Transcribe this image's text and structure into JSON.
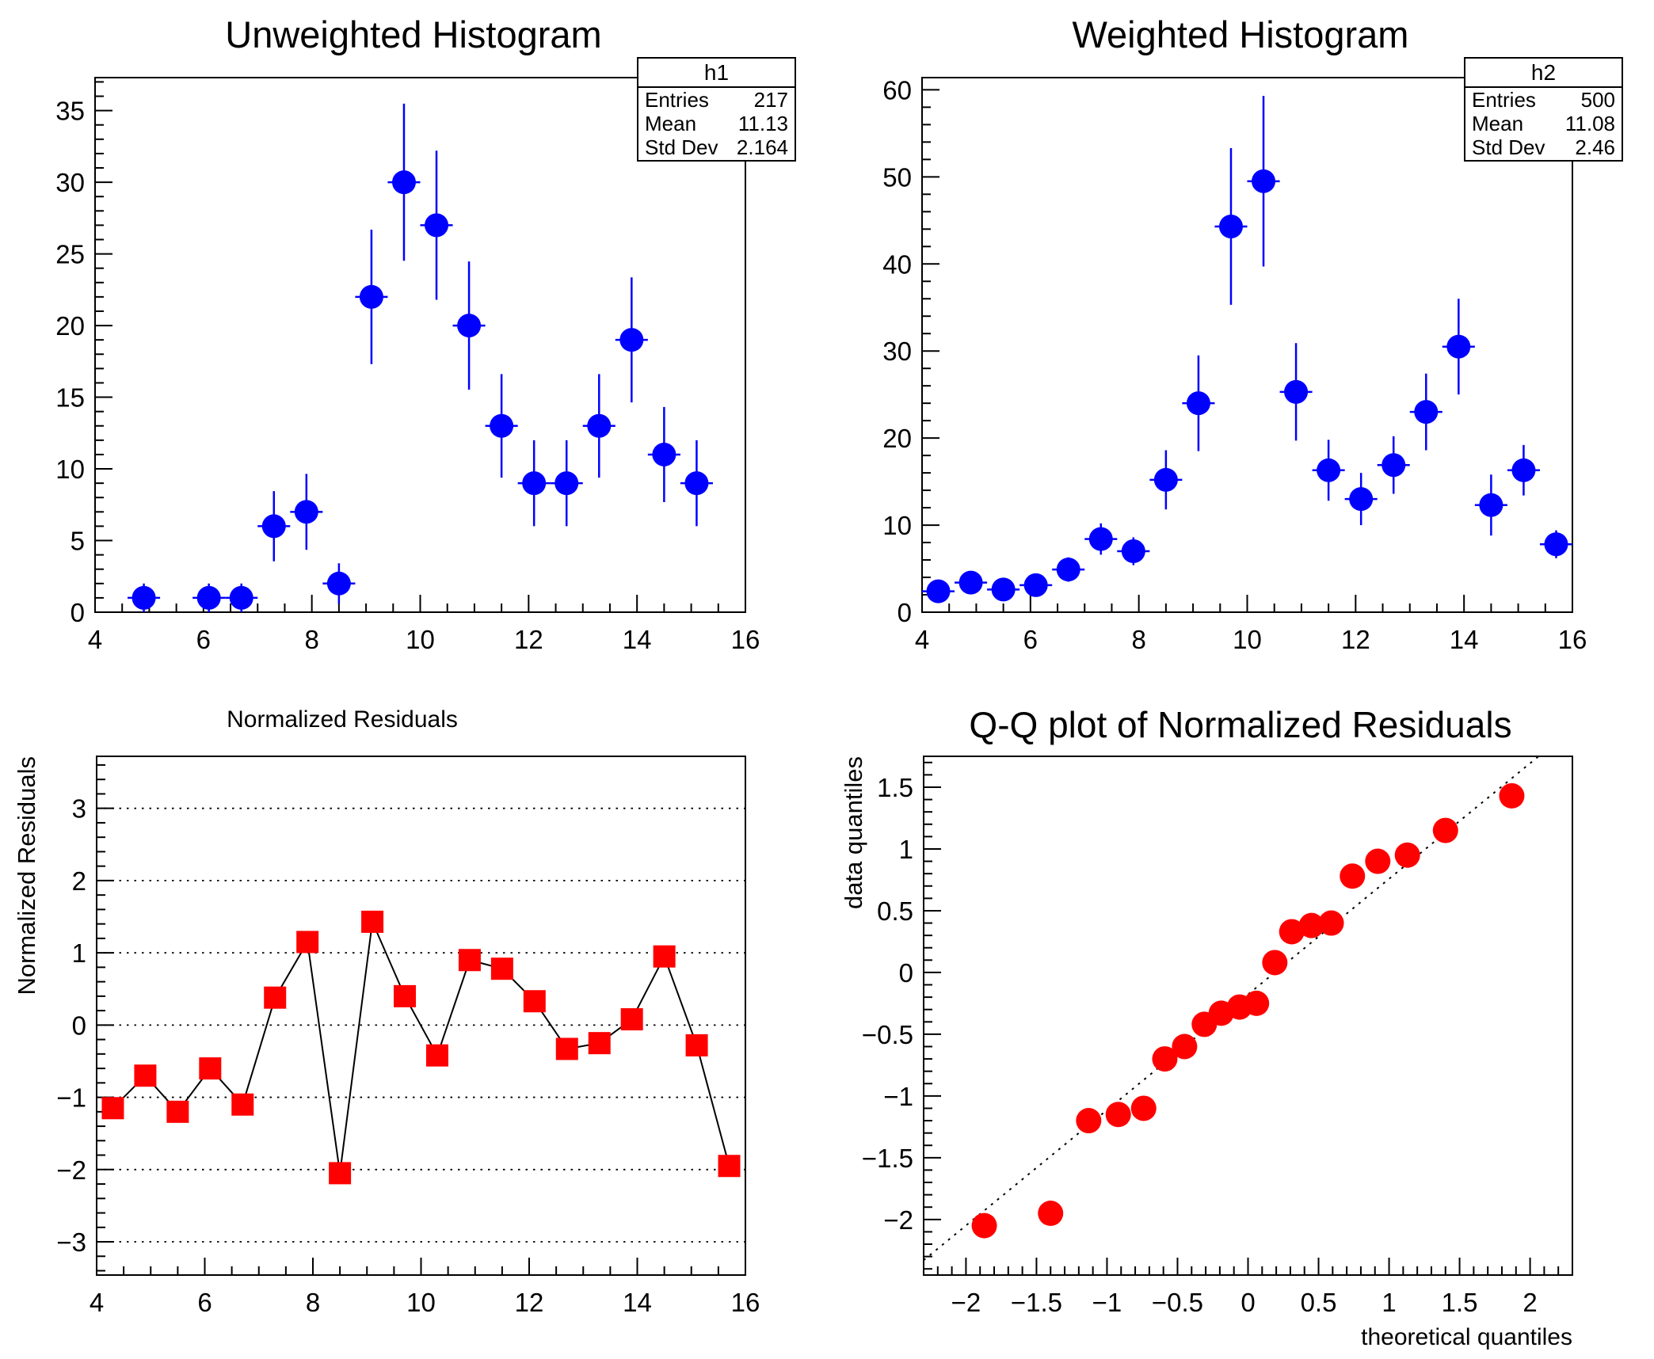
{
  "canvas": {
    "background": "#ffffff",
    "frame_color": "#000000"
  },
  "chart_data": [
    {
      "id": "unweighted-histogram",
      "type": "scatter",
      "title": "Unweighted Histogram",
      "marker": {
        "shape": "circle",
        "color": "#0000ff",
        "radius": 15
      },
      "error_bar_color": "#0000ff",
      "x_axis": {
        "min": 4,
        "max": 16,
        "major": [
          4,
          6,
          8,
          10,
          12,
          14,
          16
        ],
        "labels": [
          "4",
          "6",
          "8",
          "10",
          "12",
          "14",
          "16"
        ],
        "minor_step": 0.5
      },
      "y_axis": {
        "min": 0,
        "max": 37.3,
        "major": [
          0,
          5,
          10,
          15,
          20,
          25,
          30,
          35
        ],
        "labels": [
          "0",
          "5",
          "10",
          "15",
          "20",
          "25",
          "30",
          "35"
        ],
        "minor_step": 1
      },
      "x": [
        4.9,
        6.1,
        6.7,
        7.3,
        7.9,
        8.5,
        9.1,
        9.7,
        10.3,
        10.9,
        11.5,
        12.1,
        12.7,
        13.3,
        13.9,
        14.5,
        15.1
      ],
      "y": [
        1,
        1,
        1,
        6,
        7,
        2,
        22,
        30,
        27,
        20,
        13,
        9,
        9,
        13,
        19,
        11,
        9
      ],
      "xerr": 0.3,
      "yerr": [
        1,
        1,
        1,
        2.45,
        2.65,
        1.41,
        4.69,
        5.48,
        5.2,
        4.47,
        3.61,
        3,
        3,
        3.61,
        4.36,
        3.32,
        3
      ],
      "stats": {
        "name": "h1",
        "rows": [
          {
            "label": "Entries",
            "value": "217"
          },
          {
            "label": "Mean",
            "value": "11.13"
          },
          {
            "label": "Std Dev",
            "value": "2.164"
          }
        ]
      }
    },
    {
      "id": "weighted-histogram",
      "type": "scatter",
      "title": "Weighted Histogram",
      "marker": {
        "shape": "circle",
        "color": "#0000ff",
        "radius": 15
      },
      "error_bar_color": "#0000ff",
      "x_axis": {
        "min": 4,
        "max": 16,
        "major": [
          4,
          6,
          8,
          10,
          12,
          14,
          16
        ],
        "labels": [
          "4",
          "6",
          "8",
          "10",
          "12",
          "14",
          "16"
        ],
        "minor_step": 0.5
      },
      "y_axis": {
        "min": 0,
        "max": 61.4,
        "major": [
          0,
          10,
          20,
          30,
          40,
          50,
          60
        ],
        "labels": [
          "0",
          "10",
          "20",
          "30",
          "40",
          "50",
          "60"
        ],
        "minor_step": 2
      },
      "x": [
        4.3,
        4.9,
        5.5,
        6.1,
        6.7,
        7.3,
        7.9,
        8.5,
        9.1,
        9.7,
        10.3,
        10.9,
        11.5,
        12.1,
        12.7,
        13.3,
        13.9,
        14.5,
        15.1,
        15.7
      ],
      "y": [
        2.4,
        3.4,
        2.6,
        3.1,
        4.9,
        8.4,
        7.0,
        15.2,
        24.0,
        44.3,
        49.5,
        25.3,
        16.3,
        13.0,
        16.9,
        23.0,
        30.5,
        12.3,
        16.3,
        7.8
      ],
      "xerr": 0.3,
      "yerr": [
        1.0,
        1.2,
        1.0,
        1.1,
        1.4,
        1.8,
        1.6,
        3.4,
        5.5,
        9.0,
        9.8,
        5.6,
        3.5,
        3.0,
        3.3,
        4.4,
        5.5,
        3.5,
        2.9,
        1.6
      ],
      "stats": {
        "name": "h2",
        "rows": [
          {
            "label": "Entries",
            "value": "500"
          },
          {
            "label": "Mean",
            "value": "11.08"
          },
          {
            "label": "Std Dev",
            "value": "2.46"
          }
        ]
      }
    },
    {
      "id": "normalized-residuals",
      "type": "line",
      "title": "Normalized Residuals",
      "marker": {
        "shape": "square",
        "color": "#ff0000",
        "size": 28
      },
      "connect_line": {
        "color": "#000000",
        "width": 2
      },
      "x_axis": {
        "min": 4,
        "max": 16,
        "major": [
          4,
          6,
          8,
          10,
          12,
          14,
          16
        ],
        "labels": [
          "4",
          "6",
          "8",
          "10",
          "12",
          "14",
          "16"
        ],
        "minor_step": 0.5
      },
      "y_axis": {
        "min": -3.46,
        "max": 3.72,
        "major": [
          -3,
          -2,
          -1,
          0,
          1,
          2,
          3
        ],
        "labels": [
          "−3",
          "−2",
          "−1",
          "0",
          "1",
          "2",
          "3"
        ],
        "minor_step": 0.2,
        "gridlines": [
          -3,
          -2,
          -1,
          0,
          1,
          2,
          3
        ],
        "title": "Normalized Residuals"
      },
      "x": [
        4.3,
        4.9,
        5.5,
        6.1,
        6.7,
        7.3,
        7.9,
        8.5,
        9.1,
        9.7,
        10.3,
        10.9,
        11.5,
        12.1,
        12.7,
        13.3,
        13.9,
        14.5,
        15.1,
        15.7
      ],
      "y": [
        -1.15,
        -0.7,
        -1.2,
        -0.6,
        -1.1,
        0.38,
        1.15,
        -2.05,
        1.43,
        0.4,
        -0.42,
        0.9,
        0.78,
        0.33,
        -0.33,
        -0.25,
        0.08,
        0.95,
        -0.28,
        -1.95
      ]
    },
    {
      "id": "qq-plot",
      "type": "scatter",
      "title": "Q-Q plot of Normalized Residuals",
      "marker": {
        "shape": "circle",
        "color": "#ff0000",
        "radius": 16
      },
      "ref_line": {
        "x1": -2.3,
        "y1": -2.33,
        "x2": 2.06,
        "y2": 1.75,
        "color": "#000000"
      },
      "x_axis": {
        "min": -2.3,
        "max": 2.3,
        "major": [
          -2,
          -1.5,
          -1,
          -0.5,
          0,
          0.5,
          1,
          1.5,
          2
        ],
        "labels": [
          "−2",
          "−1.5",
          "−1",
          "−0.5",
          "0",
          "0.5",
          "1",
          "1.5",
          "2"
        ],
        "minor_step": 0.1,
        "title": "theoretical quantiles"
      },
      "y_axis": {
        "min": -2.45,
        "max": 1.75,
        "major": [
          -2,
          -1.5,
          -1,
          -0.5,
          0,
          0.5,
          1,
          1.5
        ],
        "labels": [
          "−2",
          "−1.5",
          "−1",
          "−0.5",
          "0",
          "0.5",
          "1",
          "1.5"
        ],
        "minor_step": 0.1,
        "title": "data quantiles"
      },
      "x": [
        -1.87,
        -1.4,
        -1.13,
        -0.92,
        -0.74,
        -0.59,
        -0.45,
        -0.31,
        -0.19,
        -0.06,
        0.06,
        0.19,
        0.31,
        0.45,
        0.59,
        0.74,
        0.92,
        1.13,
        1.4,
        1.87
      ],
      "y": [
        -2.05,
        -1.95,
        -1.2,
        -1.15,
        -1.1,
        -0.7,
        -0.6,
        -0.42,
        -0.33,
        -0.28,
        -0.25,
        0.08,
        0.33,
        0.38,
        0.4,
        0.78,
        0.9,
        0.95,
        1.15,
        1.43
      ]
    }
  ]
}
